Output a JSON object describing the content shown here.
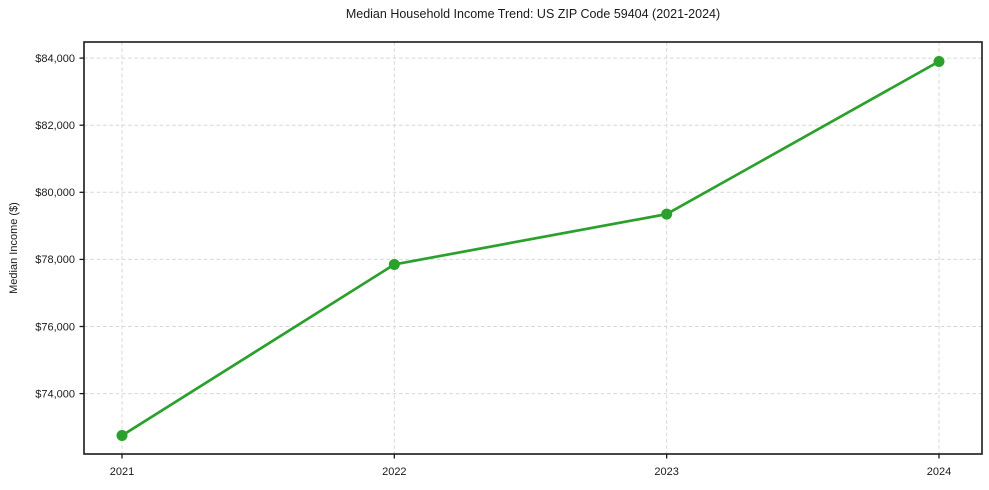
{
  "chart_data": {
    "type": "line",
    "title": "Median Household Income Trend: US ZIP Code 59404 (2021-2024)",
    "xlabel": "",
    "ylabel": "Median Income ($)",
    "x": [
      2021,
      2022,
      2023,
      2024
    ],
    "x_tick_labels": [
      "2021",
      "2022",
      "2023",
      "2024"
    ],
    "series": [
      {
        "name": "Median household income",
        "values": [
          72750,
          77850,
          79350,
          83900
        ]
      }
    ],
    "y_ticks": [
      74000,
      76000,
      78000,
      80000,
      82000,
      84000
    ],
    "y_tick_labels": [
      "$74,000",
      "$76,000",
      "$78,000",
      "$80,000",
      "$82,000",
      "$84,000"
    ],
    "ylim": [
      72200,
      84480
    ],
    "grid": true,
    "grid_style": "dashed",
    "legend_position": "none",
    "colors": {
      "line": "#2ca02c",
      "marker": "#2ca02c",
      "grid": "#d7d7d7",
      "axis": "#1a1a1a",
      "text": "#1a1a1a",
      "background": "#ffffff"
    }
  }
}
